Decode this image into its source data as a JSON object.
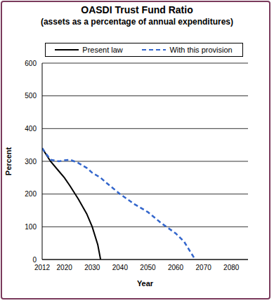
{
  "chart_data": {
    "type": "line",
    "title": "OASDI Trust Fund Ratio",
    "subtitle": "(assets as a percentage of annual expenditures)",
    "x_label": "Year",
    "y_label": "Percent",
    "x": [
      2012,
      2015,
      2018,
      2020,
      2022,
      2025,
      2028,
      2030,
      2032,
      2033,
      2035,
      2040,
      2045,
      2050,
      2055,
      2060,
      2063,
      2067
    ],
    "series": [
      {
        "name": "Present law",
        "color": "#000000",
        "line_style": "solid",
        "marker": "none",
        "values": [
          340,
          300,
          270,
          250,
          225,
          185,
          140,
          100,
          45,
          0,
          null,
          null,
          null,
          null,
          null,
          null,
          null,
          null
        ]
      },
      {
        "name": "With this provision",
        "color": "#3366cc",
        "line_style": "dashed",
        "marker": "none",
        "values": [
          340,
          305,
          300,
          303,
          305,
          295,
          280,
          265,
          255,
          250,
          235,
          200,
          170,
          145,
          110,
          80,
          55,
          0
        ]
      }
    ],
    "xlim": [
      2012,
      2086
    ],
    "xticks": [
      2012,
      2020,
      2030,
      2040,
      2050,
      2060,
      2070,
      2080
    ],
    "ylim": [
      0,
      600
    ],
    "yticks": [
      0,
      100,
      200,
      300,
      400,
      500,
      600
    ],
    "grid": true,
    "legend": "top"
  }
}
